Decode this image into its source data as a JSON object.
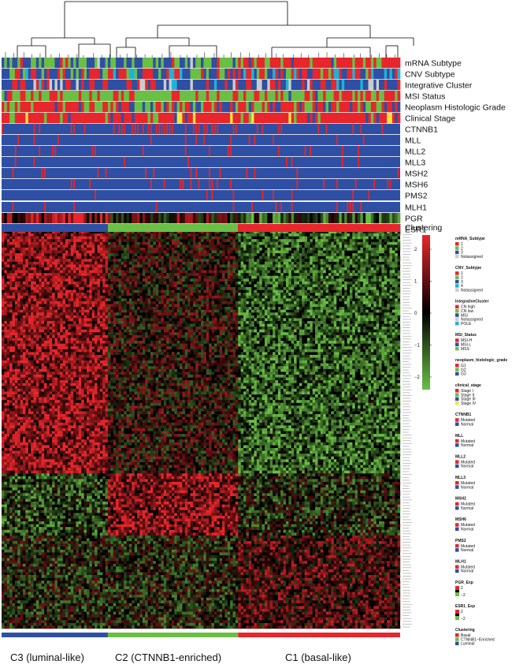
{
  "chart_data": {
    "type": "heatmap",
    "title": "",
    "annotation_tracks": [
      {
        "name": "mRNA Subtype",
        "legend": "mRNA_Subtype"
      },
      {
        "name": "CNV Subtype",
        "legend": "CNV_Subtype"
      },
      {
        "name": "Integrative Cluster",
        "legend": "IntegrativeCluster"
      },
      {
        "name": "MSI Status",
        "legend": "MSI_Status"
      },
      {
        "name": "Neoplasm Histologic Grade",
        "legend": "neoplasm_histologic_grade"
      },
      {
        "name": "Clinical Stage",
        "legend": "clinical_stage"
      },
      {
        "name": "CTNNB1",
        "legend": "CTNNB1"
      },
      {
        "name": "MLL",
        "legend": "MLL"
      },
      {
        "name": "MLL2",
        "legend": "MLL2"
      },
      {
        "name": "MLL3",
        "legend": "MLL3"
      },
      {
        "name": "MSH2",
        "legend": "MSH2"
      },
      {
        "name": "MSH6",
        "legend": "MSH6"
      },
      {
        "name": "PMS2",
        "legend": "PMS2"
      },
      {
        "name": "MLH1",
        "legend": "MLH1"
      },
      {
        "name": "PGR",
        "legend": "PGR_Exp"
      },
      {
        "name": "ESR1",
        "legend": "ESR1_Exp"
      },
      {
        "name": "Clustering",
        "legend": "Clustering"
      }
    ],
    "clusters": [
      {
        "label": "C3 (luminal-like)",
        "color": "#2e4fa3"
      },
      {
        "label": "C2 (CTNNB1-enriched)",
        "color": "#6abf45"
      },
      {
        "label": "C1 (basal-like)",
        "color": "#e8262b"
      }
    ],
    "color_scale": {
      "min": -2,
      "max": 2,
      "ticks": [
        "2",
        "1",
        "0",
        "−1",
        "−2"
      ],
      "low": "#6abf45",
      "mid": "#000000",
      "high": "#e8262b"
    },
    "legends": [
      {
        "title": "mRNA_Subtype",
        "items": [
          {
            "label": "1",
            "color": "#e8262b"
          },
          {
            "label": "2",
            "color": "#6abf45"
          },
          {
            "label": "3",
            "color": "#2e4fa3"
          },
          {
            "label": "Notassigned",
            "color": "#cccccc"
          }
        ]
      },
      {
        "title": "CNV_Subtype",
        "items": [
          {
            "label": "1",
            "color": "#e8262b"
          },
          {
            "label": "2",
            "color": "#6abf45"
          },
          {
            "label": "3",
            "color": "#2e4fa3"
          },
          {
            "label": "4",
            "color": "#20b2d6"
          },
          {
            "label": "Notassigned",
            "color": "#cccccc"
          }
        ]
      },
      {
        "title": "IntegrativeCluster",
        "items": [
          {
            "label": "CN high",
            "color": "#e8262b"
          },
          {
            "label": "CN low",
            "color": "#6abf45"
          },
          {
            "label": "MSI",
            "color": "#2e4fa3"
          },
          {
            "label": "Notassigned",
            "color": "#cccccc"
          },
          {
            "label": "POLE",
            "color": "#20b2d6"
          }
        ]
      },
      {
        "title": "MSI_Status",
        "items": [
          {
            "label": "MSI-H",
            "color": "#e8262b"
          },
          {
            "label": "MSI-L",
            "color": "#2e4fa3"
          },
          {
            "label": "MSS",
            "color": "#6abf45"
          }
        ]
      },
      {
        "title": "neoplasm_histologic_grade",
        "items": [
          {
            "label": "G1",
            "color": "#e8262b"
          },
          {
            "label": "G2",
            "color": "#6abf45"
          },
          {
            "label": "G3",
            "color": "#2e4fa3"
          }
        ]
      },
      {
        "title": "clinical_stage",
        "items": [
          {
            "label": "Stage I",
            "color": "#e8262b"
          },
          {
            "label": "Stage II",
            "color": "#6abf45"
          },
          {
            "label": "Stage III",
            "color": "#2e4fa3"
          },
          {
            "label": "Stage IV",
            "color": "#f0e442"
          }
        ]
      },
      {
        "title": "CTNNB1",
        "items": [
          {
            "label": "Mutated",
            "color": "#e8262b"
          },
          {
            "label": "Normal",
            "color": "#2e4fa3"
          }
        ]
      },
      {
        "title": "MLL",
        "items": [
          {
            "label": "Mutated",
            "color": "#e8262b"
          },
          {
            "label": "Normal",
            "color": "#2e4fa3"
          }
        ]
      },
      {
        "title": "MLL2",
        "items": [
          {
            "label": "Mutated",
            "color": "#e8262b"
          },
          {
            "label": "Normal",
            "color": "#2e4fa3"
          }
        ]
      },
      {
        "title": "MLL3",
        "items": [
          {
            "label": "Mutated",
            "color": "#e8262b"
          },
          {
            "label": "Normal",
            "color": "#2e4fa3"
          }
        ]
      },
      {
        "title": "MSH2",
        "items": [
          {
            "label": "Mutated",
            "color": "#e8262b"
          },
          {
            "label": "Normal",
            "color": "#2e4fa3"
          }
        ]
      },
      {
        "title": "MSH6",
        "items": [
          {
            "label": "Mutated",
            "color": "#e8262b"
          },
          {
            "label": "Normal",
            "color": "#2e4fa3"
          }
        ]
      },
      {
        "title": "PMS2",
        "items": [
          {
            "label": "Mutated",
            "color": "#e8262b"
          },
          {
            "label": "Normal",
            "color": "#2e4fa3"
          }
        ]
      },
      {
        "title": "MLH1",
        "items": [
          {
            "label": "Mutated",
            "color": "#e8262b"
          },
          {
            "label": "Normal",
            "color": "#2e4fa3"
          }
        ]
      },
      {
        "title": "PGR_Exp",
        "gradient": true,
        "items": [
          {
            "label": "2",
            "color": "#e8262b"
          },
          {
            "label": "−2",
            "color": "#6abf45"
          }
        ]
      },
      {
        "title": "ESR1_Exp",
        "gradient": true,
        "items": [
          {
            "label": "2",
            "color": "#e8262b"
          },
          {
            "label": "−2",
            "color": "#6abf45"
          }
        ]
      },
      {
        "title": "Clustering",
        "items": [
          {
            "label": "Basal",
            "color": "#e8262b"
          },
          {
            "label": "CTNNB1−Enriched",
            "color": "#6abf45"
          },
          {
            "label": "Luminal",
            "color": "#2e4fa3"
          }
        ]
      }
    ]
  }
}
